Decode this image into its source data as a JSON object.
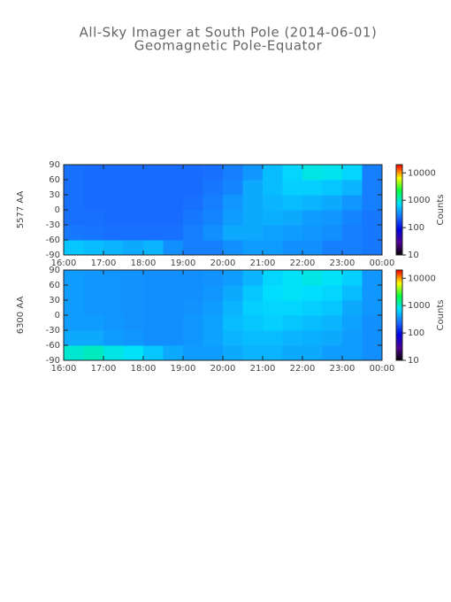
{
  "title": "All-Sky Imager at South Pole (2014-06-01)",
  "subtitle": "Geomagnetic Pole-Equator",
  "chart_data": [
    {
      "type": "heatmap",
      "ylabel": "5577 AA",
      "colorbar_label": "Counts",
      "xlim": [
        16,
        24
      ],
      "xticks": [
        {
          "value": 16,
          "label": "16:00"
        },
        {
          "value": 17,
          "label": "17:00"
        },
        {
          "value": 18,
          "label": "18:00"
        },
        {
          "value": 19,
          "label": "19:00"
        },
        {
          "value": 20,
          "label": "20:00"
        },
        {
          "value": 21,
          "label": "21:00"
        },
        {
          "value": 22,
          "label": "22:00"
        },
        {
          "value": 23,
          "label": "23:00"
        },
        {
          "value": 24,
          "label": "00:00"
        }
      ],
      "ylim": [
        -90,
        90
      ],
      "yticks": [
        -90,
        -60,
        -30,
        0,
        30,
        60,
        90
      ],
      "clim": [
        10,
        20000
      ],
      "cticks": [
        10,
        100,
        1000,
        10000
      ],
      "color_log": true,
      "colormap": [
        "#000000",
        "#500090",
        "#0000e0",
        "#1870ff",
        "#00e0ff",
        "#00ff40",
        "#ffff00",
        "#ff0000"
      ],
      "xbins": [
        16,
        16.5,
        17,
        17.5,
        18,
        18.5,
        19,
        19.5,
        20,
        20.5,
        21,
        21.5,
        22,
        22.5,
        23,
        23.5,
        24
      ],
      "ybins": [
        -90,
        -60,
        -30,
        0,
        30,
        60,
        90
      ],
      "z": [
        [
          600,
          550,
          500,
          450,
          500,
          350,
          300,
          300,
          350,
          400,
          400,
          350,
          350,
          300,
          300,
          280
        ],
        [
          280,
          270,
          260,
          260,
          260,
          260,
          300,
          350,
          450,
          450,
          420,
          400,
          380,
          350,
          300,
          280
        ],
        [
          260,
          260,
          250,
          250,
          250,
          250,
          280,
          320,
          400,
          450,
          480,
          450,
          400,
          380,
          320,
          280
        ],
        [
          260,
          250,
          250,
          250,
          250,
          250,
          260,
          300,
          380,
          450,
          500,
          550,
          500,
          450,
          380,
          300
        ],
        [
          260,
          250,
          250,
          250,
          250,
          250,
          250,
          280,
          320,
          450,
          550,
          650,
          650,
          600,
          500,
          300
        ],
        [
          260,
          250,
          250,
          250,
          250,
          250,
          250,
          260,
          300,
          380,
          550,
          700,
          900,
          850,
          700,
          300
        ]
      ]
    },
    {
      "type": "heatmap",
      "ylabel": "6300 AA",
      "colorbar_label": "Counts",
      "xlim": [
        16,
        24
      ],
      "xticks": [
        {
          "value": 16,
          "label": "16:00"
        },
        {
          "value": 17,
          "label": "17:00"
        },
        {
          "value": 18,
          "label": "18:00"
        },
        {
          "value": 19,
          "label": "19:00"
        },
        {
          "value": 20,
          "label": "20:00"
        },
        {
          "value": 21,
          "label": "21:00"
        },
        {
          "value": 22,
          "label": "22:00"
        },
        {
          "value": 23,
          "label": "23:00"
        },
        {
          "value": 24,
          "label": "00:00"
        }
      ],
      "ylim": [
        -90,
        90
      ],
      "yticks": [
        -90,
        -60,
        -30,
        0,
        30,
        60,
        90
      ],
      "clim": [
        10,
        20000
      ],
      "cticks": [
        10,
        100,
        1000,
        10000
      ],
      "color_log": true,
      "colormap": [
        "#000000",
        "#500090",
        "#0000e0",
        "#1870ff",
        "#00e0ff",
        "#00ff40",
        "#ffff00",
        "#ff0000"
      ],
      "xbins": [
        16,
        16.5,
        17,
        17.5,
        18,
        18.5,
        19,
        19.5,
        20,
        20.5,
        21,
        21.5,
        22,
        22.5,
        23,
        23.5,
        24
      ],
      "ybins": [
        -90,
        -60,
        -30,
        0,
        30,
        60,
        90
      ],
      "z": [
        [
          1000,
          1100,
          900,
          800,
          600,
          450,
          400,
          400,
          450,
          500,
          500,
          450,
          450,
          400,
          400,
          350
        ],
        [
          450,
          450,
          400,
          380,
          350,
          350,
          380,
          420,
          500,
          550,
          550,
          500,
          480,
          450,
          400,
          350
        ],
        [
          400,
          400,
          380,
          360,
          350,
          350,
          380,
          420,
          550,
          600,
          650,
          600,
          550,
          500,
          420,
          350
        ],
        [
          400,
          380,
          370,
          360,
          350,
          350,
          360,
          400,
          500,
          650,
          700,
          700,
          650,
          600,
          450,
          380
        ],
        [
          400,
          380,
          370,
          360,
          350,
          350,
          350,
          380,
          450,
          600,
          750,
          800,
          750,
          700,
          550,
          380
        ],
        [
          400,
          380,
          370,
          360,
          350,
          350,
          350,
          360,
          400,
          500,
          700,
          800,
          900,
          800,
          650,
          380
        ]
      ]
    }
  ]
}
